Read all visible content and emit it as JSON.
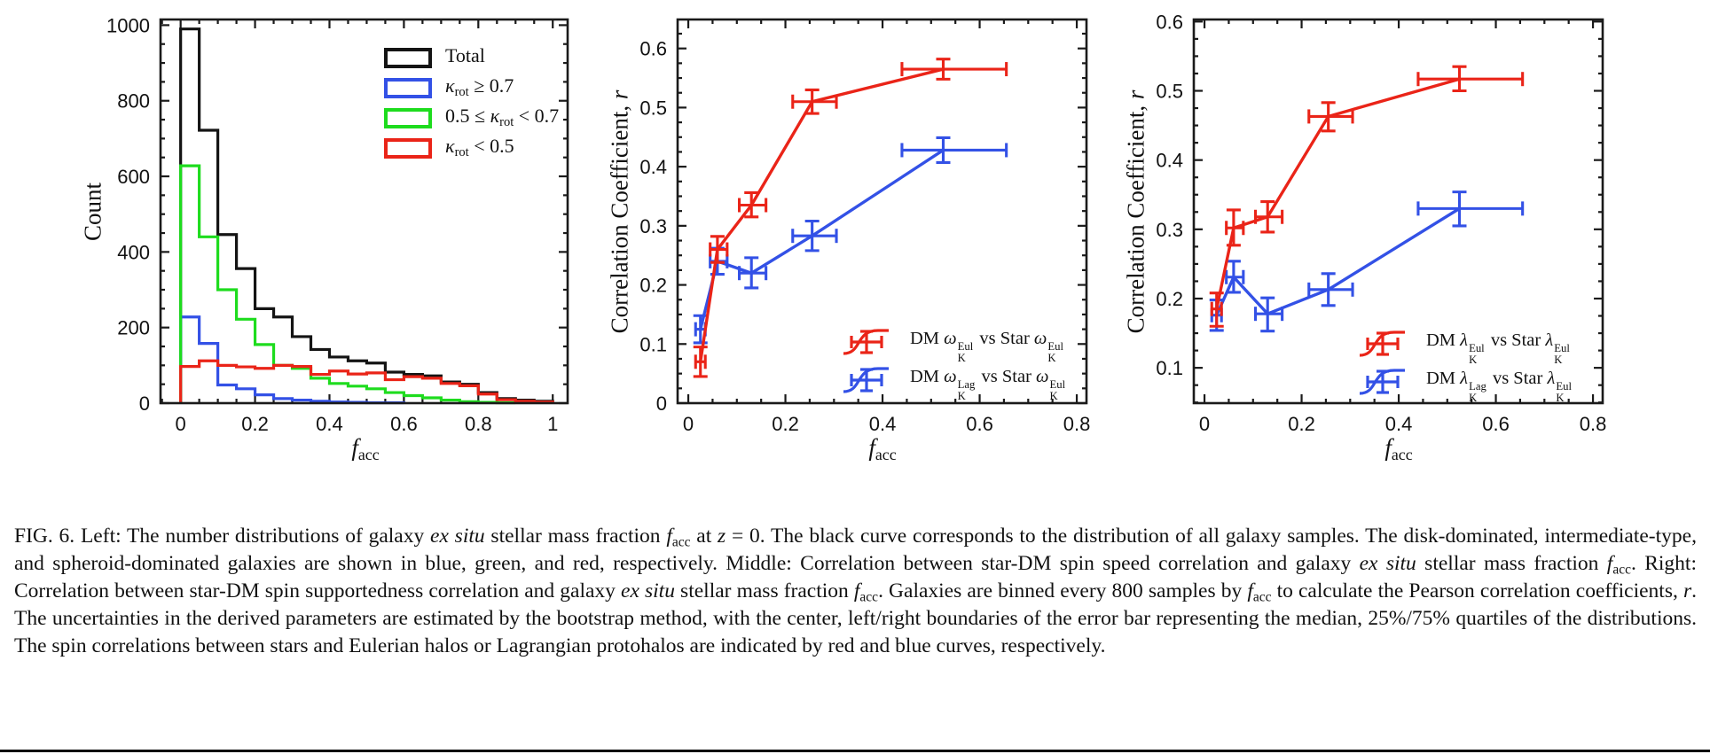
{
  "colors": {
    "black": "#141414",
    "blue": "#3351e6",
    "green": "#1edc1e",
    "red": "#ea2418",
    "axis": "#1a1a1a"
  },
  "chart_data": [
    {
      "id": "histogram",
      "type": "histogram-step",
      "title": "",
      "xlabel": {
        "main": "f",
        "sub": "acc"
      },
      "ylabel": "Count",
      "xlim": [
        -0.054,
        1.04
      ],
      "ylim": [
        0,
        1015
      ],
      "xticks": {
        "major": [
          0,
          0.2,
          0.4,
          0.6,
          0.8,
          1
        ],
        "labels": [
          "0",
          "0.2",
          "0.4",
          "0.6",
          "0.8",
          "1"
        ],
        "minor_step": 0.05
      },
      "yticks": {
        "major": [
          0,
          200,
          400,
          600,
          800,
          1000
        ],
        "labels": [
          "0",
          "200",
          "400",
          "600",
          "800",
          "1000"
        ],
        "minor_step": 50
      },
      "bin_start": 0,
      "bin_width": 0.05,
      "series": [
        {
          "name": "Total",
          "color_key": "black",
          "counts": [
            990,
            722,
            446,
            356,
            250,
            228,
            176,
            142,
            122,
            112,
            106,
            82,
            76,
            72,
            56,
            50,
            28,
            12,
            8,
            5
          ]
        },
        {
          "name": "krot >= 0.7",
          "color_key": "blue",
          "counts": [
            228,
            158,
            48,
            38,
            22,
            12,
            8,
            5,
            3,
            2,
            1,
            1,
            0,
            0,
            0,
            0,
            0,
            0,
            0,
            0
          ]
        },
        {
          "name": "0.5 <= krot < 0.7",
          "color_key": "green",
          "counts": [
            628,
            440,
            300,
            222,
            155,
            100,
            92,
            66,
            52,
            45,
            38,
            28,
            20,
            14,
            8,
            4,
            2,
            1,
            0,
            0
          ]
        },
        {
          "name": "krot < 0.5",
          "color_key": "red",
          "counts": [
            97,
            112,
            100,
            96,
            92,
            100,
            97,
            76,
            85,
            77,
            80,
            62,
            70,
            66,
            52,
            46,
            24,
            9,
            5,
            3
          ]
        }
      ],
      "legend": {
        "position": "top-right",
        "items": [
          {
            "color_key": "black",
            "segments": [
              {
                "t": "Total"
              }
            ]
          },
          {
            "color_key": "blue",
            "segments": [
              {
                "t": "κ",
                "i": true
              },
              {
                "t": "rot",
                "sub": true
              },
              {
                "t": " ≥ 0.7"
              }
            ]
          },
          {
            "color_key": "green",
            "segments": [
              {
                "t": "0.5 ≤ "
              },
              {
                "t": "κ",
                "i": true
              },
              {
                "t": "rot",
                "sub": true
              },
              {
                "t": " < 0.7"
              }
            ]
          },
          {
            "color_key": "red",
            "segments": [
              {
                "t": "κ",
                "i": true
              },
              {
                "t": "rot",
                "sub": true
              },
              {
                "t": " < 0.5"
              }
            ]
          }
        ]
      }
    },
    {
      "id": "spin-speed-correlation",
      "type": "line-errorbar",
      "title": "",
      "xlabel": {
        "main": "f",
        "sub": "acc"
      },
      "ylabel": {
        "main": "Correlation Coefficient, ",
        "italic": "r"
      },
      "xlim": [
        -0.022,
        0.82
      ],
      "ylim": [
        0,
        0.649
      ],
      "xticks": {
        "major": [
          0,
          0.2,
          0.4,
          0.6,
          0.8
        ],
        "labels": [
          "0",
          "0.2",
          "0.4",
          "0.6",
          "0.8"
        ],
        "minor_step": 0.05
      },
      "yticks": {
        "major": [
          0,
          0.1,
          0.2,
          0.3,
          0.4,
          0.5,
          0.6
        ],
        "labels": [
          "0",
          "0.1",
          "0.2",
          "0.3",
          "0.4",
          "0.5",
          "0.6"
        ],
        "minor_step": 0.025
      },
      "series": [
        {
          "name": "DM ωK^Lag vs Star ωK^Eul",
          "color_key": "blue",
          "points": [
            {
              "x": 0.025,
              "y": 0.125,
              "xlo": 0.015,
              "xhi": 0.035,
              "ylo": 0.102,
              "yhi": 0.148
            },
            {
              "x": 0.06,
              "y": 0.24,
              "xlo": 0.045,
              "xhi": 0.08,
              "ylo": 0.218,
              "yhi": 0.262
            },
            {
              "x": 0.13,
              "y": 0.22,
              "xlo": 0.105,
              "xhi": 0.16,
              "ylo": 0.195,
              "yhi": 0.246
            },
            {
              "x": 0.255,
              "y": 0.283,
              "xlo": 0.215,
              "xhi": 0.305,
              "ylo": 0.258,
              "yhi": 0.308
            },
            {
              "x": 0.525,
              "y": 0.428,
              "xlo": 0.44,
              "xhi": 0.655,
              "ylo": 0.407,
              "yhi": 0.449
            }
          ]
        },
        {
          "name": "DM ωK^Eul vs Star ωK^Eul",
          "color_key": "red",
          "points": [
            {
              "x": 0.025,
              "y": 0.07,
              "xlo": 0.015,
              "xhi": 0.035,
              "ylo": 0.045,
              "yhi": 0.095
            },
            {
              "x": 0.06,
              "y": 0.26,
              "xlo": 0.045,
              "xhi": 0.08,
              "ylo": 0.238,
              "yhi": 0.282
            },
            {
              "x": 0.13,
              "y": 0.335,
              "xlo": 0.105,
              "xhi": 0.16,
              "ylo": 0.315,
              "yhi": 0.356
            },
            {
              "x": 0.255,
              "y": 0.51,
              "xlo": 0.215,
              "xhi": 0.305,
              "ylo": 0.49,
              "yhi": 0.53
            },
            {
              "x": 0.525,
              "y": 0.565,
              "xlo": 0.44,
              "xhi": 0.655,
              "ylo": 0.548,
              "yhi": 0.582
            }
          ]
        }
      ],
      "legend": {
        "position": "bottom-right",
        "items": [
          {
            "color_key": "red",
            "segments": [
              {
                "t": "DM "
              },
              {
                "t": "ω",
                "i": true
              },
              {
                "stack": {
                  "sup": "Eul",
                  "sub": "K"
                }
              },
              {
                "t": " vs Star "
              },
              {
                "t": "ω",
                "i": true
              },
              {
                "stack": {
                  "sup": "Eul",
                  "sub": "K"
                }
              }
            ]
          },
          {
            "color_key": "blue",
            "segments": [
              {
                "t": "DM "
              },
              {
                "t": "ω",
                "i": true
              },
              {
                "stack": {
                  "sup": "Lag",
                  "sub": "K"
                }
              },
              {
                "t": " vs Star "
              },
              {
                "t": "ω",
                "i": true
              },
              {
                "stack": {
                  "sup": "Eul",
                  "sub": "K"
                }
              }
            ]
          }
        ]
      }
    },
    {
      "id": "spin-supportedness-correlation",
      "type": "line-errorbar",
      "title": "",
      "xlabel": {
        "main": "f",
        "sub": "acc"
      },
      "ylabel": {
        "main": "Correlation Coefficient, ",
        "italic": "r"
      },
      "xlim": [
        -0.022,
        0.82
      ],
      "ylim": [
        0.049,
        0.603
      ],
      "xticks": {
        "major": [
          0,
          0.2,
          0.4,
          0.6,
          0.8
        ],
        "labels": [
          "0",
          "0.2",
          "0.4",
          "0.6",
          "0.8"
        ],
        "minor_step": 0.05
      },
      "yticks": {
        "major": [
          0.1,
          0.2,
          0.3,
          0.4,
          0.5,
          0.6
        ],
        "labels": [
          "0.1",
          "0.2",
          "0.3",
          "0.4",
          "0.5",
          "0.6"
        ],
        "minor_step": 0.025
      },
      "series": [
        {
          "name": "DM λK^Lag vs Star λK^Eul",
          "color_key": "blue",
          "points": [
            {
              "x": 0.025,
              "y": 0.176,
              "xlo": 0.015,
              "xhi": 0.035,
              "ylo": 0.154,
              "yhi": 0.198
            },
            {
              "x": 0.06,
              "y": 0.231,
              "xlo": 0.045,
              "xhi": 0.08,
              "ylo": 0.209,
              "yhi": 0.254
            },
            {
              "x": 0.13,
              "y": 0.178,
              "xlo": 0.105,
              "xhi": 0.16,
              "ylo": 0.153,
              "yhi": 0.201
            },
            {
              "x": 0.255,
              "y": 0.213,
              "xlo": 0.215,
              "xhi": 0.305,
              "ylo": 0.19,
              "yhi": 0.236
            },
            {
              "x": 0.525,
              "y": 0.33,
              "xlo": 0.44,
              "xhi": 0.655,
              "ylo": 0.305,
              "yhi": 0.354
            }
          ]
        },
        {
          "name": "DM λK^Eul vs Star λK^Eul",
          "color_key": "red",
          "points": [
            {
              "x": 0.025,
              "y": 0.185,
              "xlo": 0.015,
              "xhi": 0.035,
              "ylo": 0.16,
              "yhi": 0.208
            },
            {
              "x": 0.06,
              "y": 0.302,
              "xlo": 0.045,
              "xhi": 0.08,
              "ylo": 0.277,
              "yhi": 0.328
            },
            {
              "x": 0.13,
              "y": 0.318,
              "xlo": 0.105,
              "xhi": 0.16,
              "ylo": 0.296,
              "yhi": 0.34
            },
            {
              "x": 0.255,
              "y": 0.463,
              "xlo": 0.215,
              "xhi": 0.305,
              "ylo": 0.442,
              "yhi": 0.483
            },
            {
              "x": 0.525,
              "y": 0.517,
              "xlo": 0.44,
              "xhi": 0.655,
              "ylo": 0.5,
              "yhi": 0.535
            }
          ]
        }
      ],
      "legend": {
        "position": "bottom-right",
        "items": [
          {
            "color_key": "red",
            "segments": [
              {
                "t": "DM "
              },
              {
                "t": "λ",
                "i": true
              },
              {
                "stack": {
                  "sup": "Eul",
                  "sub": "K"
                }
              },
              {
                "t": " vs Star "
              },
              {
                "t": "λ",
                "i": true
              },
              {
                "stack": {
                  "sup": "Eul",
                  "sub": "K"
                }
              }
            ]
          },
          {
            "color_key": "blue",
            "segments": [
              {
                "t": "DM "
              },
              {
                "t": "λ",
                "i": true
              },
              {
                "stack": {
                  "sup": "Lag",
                  "sub": "K"
                }
              },
              {
                "t": " vs Star "
              },
              {
                "t": "λ",
                "i": true
              },
              {
                "stack": {
                  "sup": "Eul",
                  "sub": "K"
                }
              }
            ]
          }
        ]
      }
    }
  ],
  "caption": {
    "segments": [
      {
        "t": "FIG. 6. Left: The number distributions of galaxy "
      },
      {
        "t": "ex situ",
        "i": true
      },
      {
        "t": " stellar mass fraction "
      },
      {
        "t": "f",
        "i": true
      },
      {
        "t": "acc",
        "sub": true
      },
      {
        "t": " at "
      },
      {
        "t": "z",
        "i": true
      },
      {
        "t": " = 0. The black curve corresponds to the distribution of all galaxy samples. The disk-dominated, intermediate-type, and spheroid-dominated galaxies are shown in blue, green, and red, respectively. Middle: Correlation between star-DM spin speed correlation and galaxy "
      },
      {
        "t": "ex situ",
        "i": true
      },
      {
        "t": " stellar mass fraction "
      },
      {
        "t": "f",
        "i": true
      },
      {
        "t": "acc",
        "sub": true
      },
      {
        "t": ". Right: Correlation between star-DM spin supportedness correlation and galaxy "
      },
      {
        "t": "ex situ",
        "i": true
      },
      {
        "t": " stellar mass fraction "
      },
      {
        "t": "f",
        "i": true
      },
      {
        "t": "acc",
        "sub": true
      },
      {
        "t": ". Galaxies are binned every 800 samples by "
      },
      {
        "t": "f",
        "i": true
      },
      {
        "t": "acc",
        "sub": true
      },
      {
        "t": " to calculate the Pearson correlation coefficients, "
      },
      {
        "t": "r",
        "i": true
      },
      {
        "t": ". The uncertainties in the derived parameters are estimated by the bootstrap method, with the center, left/right boundaries of the error bar representing the median, 25%/75% quartiles of the distributions. The spin correlations between stars and Eulerian halos or Lagrangian protohalos are indicated by red and blue curves, respectively."
      }
    ]
  }
}
